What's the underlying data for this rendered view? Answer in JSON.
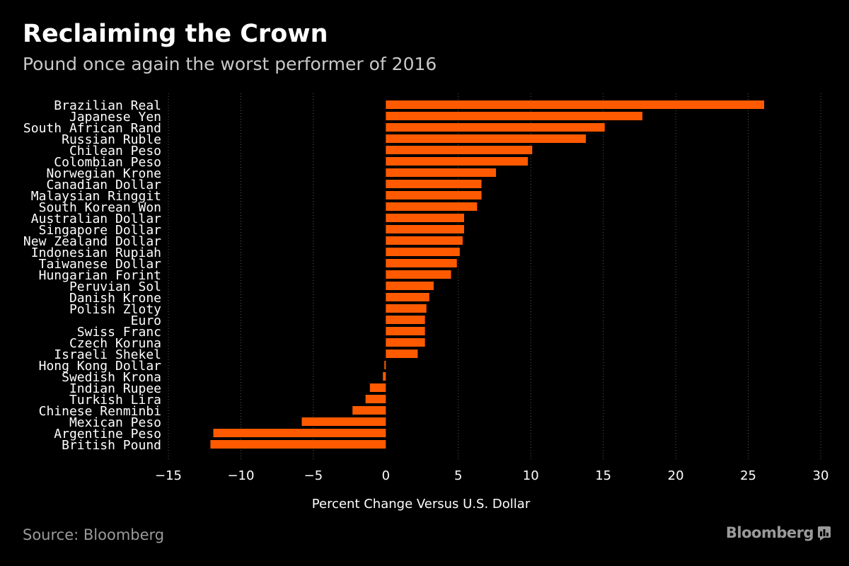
{
  "title": "Reclaiming the Crown",
  "subtitle": "Pound once again the worst performer of 2016",
  "source": "Source: Bloomberg",
  "brand": "Bloomberg",
  "colors": {
    "background": "#000000",
    "bar": "#ff5a00",
    "text": "#ffffff",
    "subtitle": "#c8c8c8",
    "muted": "#9a9a9a",
    "grid": "#5a5a5a"
  },
  "chart_data": {
    "type": "bar",
    "orientation": "horizontal",
    "xlabel": "Percent Change Versus U.S. Dollar",
    "xlim": [
      -15,
      30
    ],
    "xticks": [
      -15,
      -10,
      -5,
      0,
      5,
      10,
      15,
      20,
      25,
      30
    ],
    "grid": "vertical-dotted",
    "categories": [
      "Brazilian Real",
      "Japanese Yen",
      "South African Rand",
      "Russian Ruble",
      "Chilean Peso",
      "Colombian Peso",
      "Norwegian Krone",
      "Canadian Dollar",
      "Malaysian Ringgit",
      "South Korean Won",
      "Australian Dollar",
      "Singapore Dollar",
      "New Zealand Dollar",
      "Indonesian Rupiah",
      "Taiwanese Dollar",
      "Hungarian Forint",
      "Peruvian Sol",
      "Danish Krone",
      "Polish Zloty",
      "Euro",
      "Swiss Franc",
      "Czech Koruna",
      "Israeli Shekel",
      "Hong Kong Dollar",
      "Swedish Krona",
      "Indian Rupee",
      "Turkish Lira",
      "Chinese Renminbi",
      "Mexican Peso",
      "Argentine Peso",
      "British Pound"
    ],
    "values": [
      26.1,
      17.7,
      15.1,
      13.8,
      10.1,
      9.8,
      7.6,
      6.6,
      6.6,
      6.3,
      5.4,
      5.4,
      5.3,
      5.1,
      4.9,
      4.5,
      3.3,
      3.0,
      2.8,
      2.7,
      2.7,
      2.7,
      2.2,
      -0.1,
      -0.2,
      -1.1,
      -1.4,
      -2.3,
      -5.8,
      -11.9,
      -12.1
    ]
  }
}
